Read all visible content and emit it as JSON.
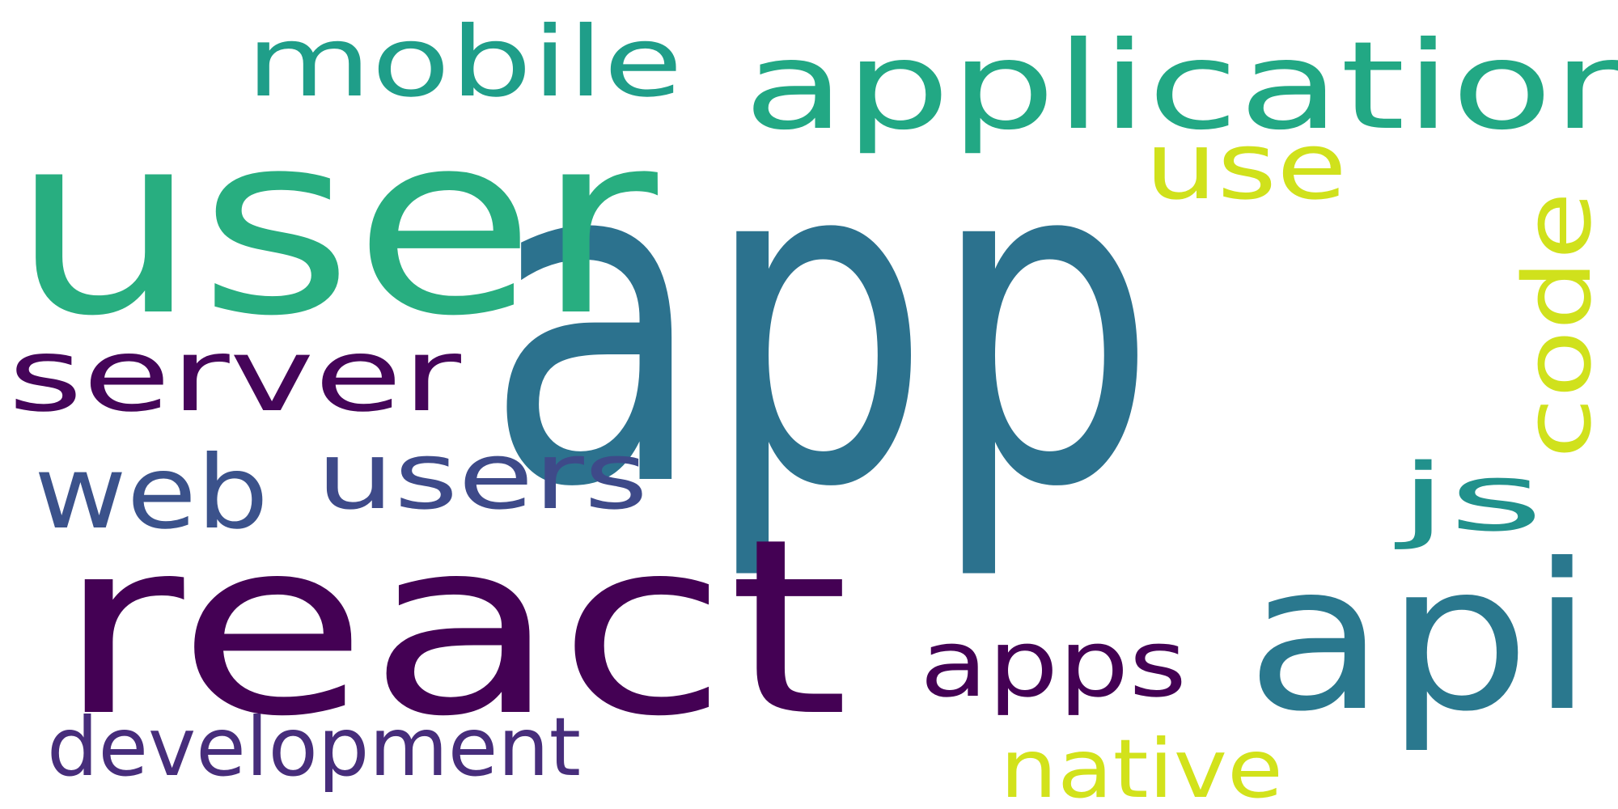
{
  "words": [
    {
      "text": "app",
      "color": "#2c728e"
    },
    {
      "text": "user",
      "color": "#28ae80"
    },
    {
      "text": "react",
      "color": "#440154"
    },
    {
      "text": "api",
      "color": "#2a788e"
    },
    {
      "text": "application",
      "color": "#22a884"
    },
    {
      "text": "mobile",
      "color": "#1f9e89"
    },
    {
      "text": "server",
      "color": "#450559"
    },
    {
      "text": "web",
      "color": "#3b528b"
    },
    {
      "text": "users",
      "color": "#3e4a89"
    },
    {
      "text": "use",
      "color": "#d0e11c"
    },
    {
      "text": "code",
      "color": "#d0e11c"
    },
    {
      "text": "js",
      "color": "#21918c"
    },
    {
      "text": "apps",
      "color": "#440154"
    },
    {
      "text": "development",
      "color": "#472d7b"
    },
    {
      "text": "native",
      "color": "#d2e21b"
    }
  ]
}
